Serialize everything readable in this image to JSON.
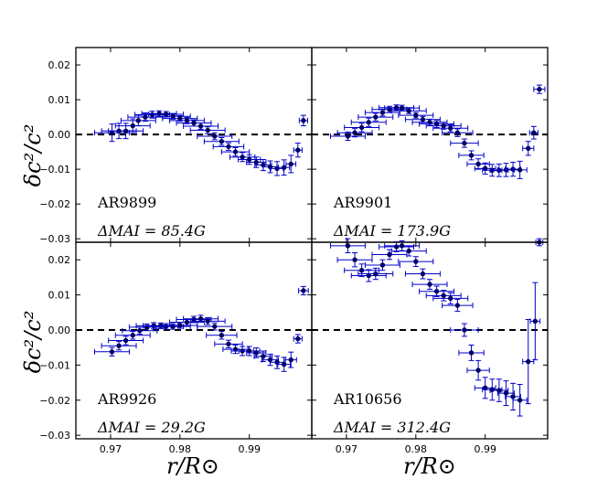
{
  "figure": {
    "ylabel": "δc²/c²",
    "xlabel": "r/R⊙"
  },
  "colors": {
    "series": "#0000cc",
    "reference": "#000000"
  },
  "chart_data": [
    {
      "type": "scatter",
      "name": "AR9899",
      "annotation_title": "AR9899",
      "annotation_value": "ΔMAI = 85.4G",
      "xlim": [
        0.965,
        0.999
      ],
      "ylim": [
        -0.031,
        0.025
      ],
      "xticks": [
        "0.97",
        "0.98",
        "0.99"
      ],
      "yticks": [
        "0.02",
        "0.01",
        "0.00",
        "−0.01",
        "−0.02",
        "−0.03"
      ],
      "reference_line_y": 0.0,
      "points": [
        {
          "x": 0.9702,
          "y": 0.0005,
          "xerr": 0.0025,
          "yerr": 0.0025
        },
        {
          "x": 0.9712,
          "y": 0.001,
          "xerr": 0.0025,
          "yerr": 0.0022
        },
        {
          "x": 0.9722,
          "y": 0.001,
          "xerr": 0.0025,
          "yerr": 0.0022
        },
        {
          "x": 0.9732,
          "y": 0.0025,
          "xerr": 0.0025,
          "yerr": 0.002
        },
        {
          "x": 0.974,
          "y": 0.004,
          "xerr": 0.0025,
          "yerr": 0.0015
        },
        {
          "x": 0.975,
          "y": 0.005,
          "xerr": 0.0025,
          "yerr": 0.0012
        },
        {
          "x": 0.976,
          "y": 0.0057,
          "xerr": 0.0025,
          "yerr": 0.001
        },
        {
          "x": 0.977,
          "y": 0.006,
          "xerr": 0.0025,
          "yerr": 0.0008
        },
        {
          "x": 0.978,
          "y": 0.0058,
          "xerr": 0.0025,
          "yerr": 0.0008
        },
        {
          "x": 0.979,
          "y": 0.0052,
          "xerr": 0.0025,
          "yerr": 0.0008
        },
        {
          "x": 0.98,
          "y": 0.0046,
          "xerr": 0.0025,
          "yerr": 0.0008
        },
        {
          "x": 0.981,
          "y": 0.004,
          "xerr": 0.0025,
          "yerr": 0.0009
        },
        {
          "x": 0.982,
          "y": 0.0033,
          "xerr": 0.0025,
          "yerr": 0.0009
        },
        {
          "x": 0.983,
          "y": 0.0024,
          "xerr": 0.0025,
          "yerr": 0.0009
        },
        {
          "x": 0.984,
          "y": 0.0012,
          "xerr": 0.0025,
          "yerr": 0.001
        },
        {
          "x": 0.985,
          "y": -0.0005,
          "xerr": 0.0025,
          "yerr": 0.001
        },
        {
          "x": 0.986,
          "y": -0.002,
          "xerr": 0.0025,
          "yerr": 0.0011
        },
        {
          "x": 0.987,
          "y": -0.0035,
          "xerr": 0.0022,
          "yerr": 0.0011
        },
        {
          "x": 0.988,
          "y": -0.005,
          "xerr": 0.002,
          "yerr": 0.0012
        },
        {
          "x": 0.989,
          "y": -0.0065,
          "xerr": 0.0018,
          "yerr": 0.0013
        },
        {
          "x": 0.99,
          "y": -0.0072,
          "xerr": 0.0016,
          "yerr": 0.0014
        },
        {
          "x": 0.991,
          "y": -0.008,
          "xerr": 0.0014,
          "yerr": 0.0015
        },
        {
          "x": 0.992,
          "y": -0.0088,
          "xerr": 0.0012,
          "yerr": 0.0016
        },
        {
          "x": 0.993,
          "y": -0.0093,
          "xerr": 0.001,
          "yerr": 0.0017
        },
        {
          "x": 0.994,
          "y": -0.0098,
          "xerr": 0.0009,
          "yerr": 0.002
        },
        {
          "x": 0.995,
          "y": -0.0095,
          "xerr": 0.0008,
          "yerr": 0.0022
        },
        {
          "x": 0.996,
          "y": -0.0085,
          "xerr": 0.0007,
          "yerr": 0.0025
        },
        {
          "x": 0.997,
          "y": -0.0045,
          "xerr": 0.0006,
          "yerr": 0.002
        },
        {
          "x": 0.9978,
          "y": 0.004,
          "xerr": 0.0006,
          "yerr": 0.0015
        }
      ]
    },
    {
      "type": "scatter",
      "name": "AR9901",
      "annotation_title": "AR9901",
      "annotation_value": "ΔMAI = 173.9G",
      "xlim": [
        0.965,
        0.999
      ],
      "ylim": [
        -0.031,
        0.025
      ],
      "xticks": [
        "0.97",
        "0.98",
        "0.99"
      ],
      "yticks": [],
      "reference_line_y": 0.0,
      "points": [
        {
          "x": 0.9702,
          "y": -0.0005,
          "xerr": 0.0025,
          "yerr": 0.0012
        },
        {
          "x": 0.9712,
          "y": 0.0005,
          "xerr": 0.0025,
          "yerr": 0.0012
        },
        {
          "x": 0.9722,
          "y": 0.002,
          "xerr": 0.0025,
          "yerr": 0.0012
        },
        {
          "x": 0.9732,
          "y": 0.0035,
          "xerr": 0.0025,
          "yerr": 0.0012
        },
        {
          "x": 0.9742,
          "y": 0.005,
          "xerr": 0.0025,
          "yerr": 0.0011
        },
        {
          "x": 0.9752,
          "y": 0.0063,
          "xerr": 0.0025,
          "yerr": 0.001
        },
        {
          "x": 0.9762,
          "y": 0.0072,
          "xerr": 0.0025,
          "yerr": 0.0009
        },
        {
          "x": 0.9772,
          "y": 0.0077,
          "xerr": 0.0025,
          "yerr": 0.0008
        },
        {
          "x": 0.978,
          "y": 0.0076,
          "xerr": 0.0025,
          "yerr": 0.0008
        },
        {
          "x": 0.979,
          "y": 0.0068,
          "xerr": 0.0025,
          "yerr": 0.0008
        },
        {
          "x": 0.98,
          "y": 0.0055,
          "xerr": 0.0025,
          "yerr": 0.0008
        },
        {
          "x": 0.981,
          "y": 0.0043,
          "xerr": 0.0025,
          "yerr": 0.0009
        },
        {
          "x": 0.982,
          "y": 0.0035,
          "xerr": 0.0025,
          "yerr": 0.0009
        },
        {
          "x": 0.983,
          "y": 0.003,
          "xerr": 0.0025,
          "yerr": 0.001
        },
        {
          "x": 0.984,
          "y": 0.0025,
          "xerr": 0.0025,
          "yerr": 0.001
        },
        {
          "x": 0.985,
          "y": 0.0018,
          "xerr": 0.0025,
          "yerr": 0.001
        },
        {
          "x": 0.986,
          "y": 0.0005,
          "xerr": 0.0022,
          "yerr": 0.0011
        },
        {
          "x": 0.987,
          "y": -0.0025,
          "xerr": 0.002,
          "yerr": 0.0012
        },
        {
          "x": 0.988,
          "y": -0.006,
          "xerr": 0.0018,
          "yerr": 0.0013
        },
        {
          "x": 0.989,
          "y": -0.0085,
          "xerr": 0.0016,
          "yerr": 0.0015
        },
        {
          "x": 0.99,
          "y": -0.0098,
          "xerr": 0.0015,
          "yerr": 0.0016
        },
        {
          "x": 0.991,
          "y": -0.0103,
          "xerr": 0.0014,
          "yerr": 0.0017
        },
        {
          "x": 0.992,
          "y": -0.0103,
          "xerr": 0.0013,
          "yerr": 0.0018
        },
        {
          "x": 0.993,
          "y": -0.0102,
          "xerr": 0.0012,
          "yerr": 0.0019
        },
        {
          "x": 0.994,
          "y": -0.01,
          "xerr": 0.0011,
          "yerr": 0.002
        },
        {
          "x": 0.995,
          "y": -0.0102,
          "xerr": 0.001,
          "yerr": 0.0025
        },
        {
          "x": 0.9962,
          "y": -0.004,
          "xerr": 0.0008,
          "yerr": 0.002
        },
        {
          "x": 0.997,
          "y": 0.0005,
          "xerr": 0.0006,
          "yerr": 0.0018
        },
        {
          "x": 0.9978,
          "y": 0.013,
          "xerr": 0.0008,
          "yerr": 0.0012
        }
      ]
    },
    {
      "type": "scatter",
      "name": "AR9926",
      "annotation_title": "AR9926",
      "annotation_value": "ΔMAI = 29.2G",
      "xlim": [
        0.965,
        0.999
      ],
      "ylim": [
        -0.031,
        0.025
      ],
      "xticks": [
        "0.97",
        "0.98",
        "0.99"
      ],
      "yticks": [
        "0.02",
        "0.01",
        "0.00",
        "−0.01",
        "−0.02",
        "−0.03"
      ],
      "reference_line_y": 0.0,
      "points": [
        {
          "x": 0.9702,
          "y": -0.0062,
          "xerr": 0.0025,
          "yerr": 0.0012
        },
        {
          "x": 0.9712,
          "y": -0.0045,
          "xerr": 0.0025,
          "yerr": 0.0012
        },
        {
          "x": 0.9722,
          "y": -0.003,
          "xerr": 0.0025,
          "yerr": 0.0012
        },
        {
          "x": 0.9732,
          "y": -0.0015,
          "xerr": 0.0025,
          "yerr": 0.0011
        },
        {
          "x": 0.9742,
          "y": -0.0002,
          "xerr": 0.0025,
          "yerr": 0.001
        },
        {
          "x": 0.9752,
          "y": 0.0008,
          "xerr": 0.0025,
          "yerr": 0.0009
        },
        {
          "x": 0.9762,
          "y": 0.0012,
          "xerr": 0.0025,
          "yerr": 0.0009
        },
        {
          "x": 0.9772,
          "y": 0.0012,
          "xerr": 0.0025,
          "yerr": 0.0008
        },
        {
          "x": 0.978,
          "y": 0.001,
          "xerr": 0.0025,
          "yerr": 0.0008
        },
        {
          "x": 0.979,
          "y": 0.001,
          "xerr": 0.0025,
          "yerr": 0.0008
        },
        {
          "x": 0.98,
          "y": 0.0013,
          "xerr": 0.0025,
          "yerr": 0.0008
        },
        {
          "x": 0.981,
          "y": 0.0022,
          "xerr": 0.0025,
          "yerr": 0.0009
        },
        {
          "x": 0.982,
          "y": 0.003,
          "xerr": 0.0025,
          "yerr": 0.0009
        },
        {
          "x": 0.983,
          "y": 0.0032,
          "xerr": 0.0025,
          "yerr": 0.001
        },
        {
          "x": 0.984,
          "y": 0.0025,
          "xerr": 0.0025,
          "yerr": 0.001
        },
        {
          "x": 0.985,
          "y": 0.001,
          "xerr": 0.0025,
          "yerr": 0.001
        },
        {
          "x": 0.986,
          "y": -0.0015,
          "xerr": 0.0022,
          "yerr": 0.0011
        },
        {
          "x": 0.987,
          "y": -0.004,
          "xerr": 0.002,
          "yerr": 0.0011
        },
        {
          "x": 0.988,
          "y": -0.0055,
          "xerr": 0.0018,
          "yerr": 0.0012
        },
        {
          "x": 0.989,
          "y": -0.006,
          "xerr": 0.0016,
          "yerr": 0.0013
        },
        {
          "x": 0.99,
          "y": -0.006,
          "xerr": 0.0015,
          "yerr": 0.0013
        },
        {
          "x": 0.991,
          "y": -0.0065,
          "xerr": 0.0014,
          "yerr": 0.0014
        },
        {
          "x": 0.992,
          "y": -0.0075,
          "xerr": 0.0013,
          "yerr": 0.0015
        },
        {
          "x": 0.993,
          "y": -0.0085,
          "xerr": 0.0012,
          "yerr": 0.0016
        },
        {
          "x": 0.994,
          "y": -0.0092,
          "xerr": 0.001,
          "yerr": 0.0018
        },
        {
          "x": 0.995,
          "y": -0.0098,
          "xerr": 0.0009,
          "yerr": 0.002
        },
        {
          "x": 0.996,
          "y": -0.0085,
          "xerr": 0.0008,
          "yerr": 0.0022
        },
        {
          "x": 0.997,
          "y": -0.0025,
          "xerr": 0.0006,
          "yerr": 0.0012
        },
        {
          "x": 0.9978,
          "y": 0.0112,
          "xerr": 0.0007,
          "yerr": 0.0012
        }
      ]
    },
    {
      "type": "scatter",
      "name": "AR10656",
      "annotation_title": "AR10656",
      "annotation_value": "ΔMAI = 312.4G",
      "xlim": [
        0.965,
        0.999
      ],
      "ylim": [
        -0.031,
        0.025
      ],
      "xticks": [
        "0.97",
        "0.98",
        "0.99"
      ],
      "yticks": [],
      "reference_line_y": 0.0,
      "points": [
        {
          "x": 0.9702,
          "y": 0.024,
          "xerr": 0.0025,
          "yerr": 0.002
        },
        {
          "x": 0.9712,
          "y": 0.02,
          "xerr": 0.0025,
          "yerr": 0.002
        },
        {
          "x": 0.9722,
          "y": 0.017,
          "xerr": 0.0025,
          "yerr": 0.0018
        },
        {
          "x": 0.9732,
          "y": 0.0155,
          "xerr": 0.0025,
          "yerr": 0.0017
        },
        {
          "x": 0.9742,
          "y": 0.016,
          "xerr": 0.0025,
          "yerr": 0.0016
        },
        {
          "x": 0.9752,
          "y": 0.0185,
          "xerr": 0.0025,
          "yerr": 0.0015
        },
        {
          "x": 0.9762,
          "y": 0.0215,
          "xerr": 0.0025,
          "yerr": 0.0014
        },
        {
          "x": 0.9772,
          "y": 0.0237,
          "xerr": 0.0025,
          "yerr": 0.0014
        },
        {
          "x": 0.978,
          "y": 0.024,
          "xerr": 0.0025,
          "yerr": 0.0014
        },
        {
          "x": 0.979,
          "y": 0.0225,
          "xerr": 0.0025,
          "yerr": 0.0014
        },
        {
          "x": 0.98,
          "y": 0.0195,
          "xerr": 0.0025,
          "yerr": 0.0014
        },
        {
          "x": 0.981,
          "y": 0.016,
          "xerr": 0.0025,
          "yerr": 0.0014
        },
        {
          "x": 0.982,
          "y": 0.013,
          "xerr": 0.0025,
          "yerr": 0.0014
        },
        {
          "x": 0.983,
          "y": 0.011,
          "xerr": 0.0025,
          "yerr": 0.0015
        },
        {
          "x": 0.984,
          "y": 0.0098,
          "xerr": 0.0025,
          "yerr": 0.0015
        },
        {
          "x": 0.985,
          "y": 0.009,
          "xerr": 0.0025,
          "yerr": 0.0016
        },
        {
          "x": 0.986,
          "y": 0.007,
          "xerr": 0.0022,
          "yerr": 0.0017
        },
        {
          "x": 0.987,
          "y": 0.0,
          "xerr": 0.002,
          "yerr": 0.0018
        },
        {
          "x": 0.988,
          "y": -0.0065,
          "xerr": 0.0018,
          "yerr": 0.0022
        },
        {
          "x": 0.989,
          "y": -0.0115,
          "xerr": 0.0016,
          "yerr": 0.0028
        },
        {
          "x": 0.99,
          "y": -0.0165,
          "xerr": 0.0015,
          "yerr": 0.003
        },
        {
          "x": 0.991,
          "y": -0.017,
          "xerr": 0.0014,
          "yerr": 0.003
        },
        {
          "x": 0.992,
          "y": -0.0172,
          "xerr": 0.0013,
          "yerr": 0.0032
        },
        {
          "x": 0.993,
          "y": -0.018,
          "xerr": 0.0012,
          "yerr": 0.0035
        },
        {
          "x": 0.994,
          "y": -0.019,
          "xerr": 0.0011,
          "yerr": 0.0038
        },
        {
          "x": 0.995,
          "y": -0.02,
          "xerr": 0.001,
          "yerr": 0.0045
        },
        {
          "x": 0.9962,
          "y": -0.009,
          "xerr": 0.0008,
          "yerr": 0.012
        },
        {
          "x": 0.9972,
          "y": 0.0025,
          "xerr": 0.0007,
          "yerr": 0.011
        },
        {
          "x": 0.9978,
          "y": 0.025,
          "xerr": 0.0005,
          "yerr": 0.001
        }
      ]
    }
  ]
}
